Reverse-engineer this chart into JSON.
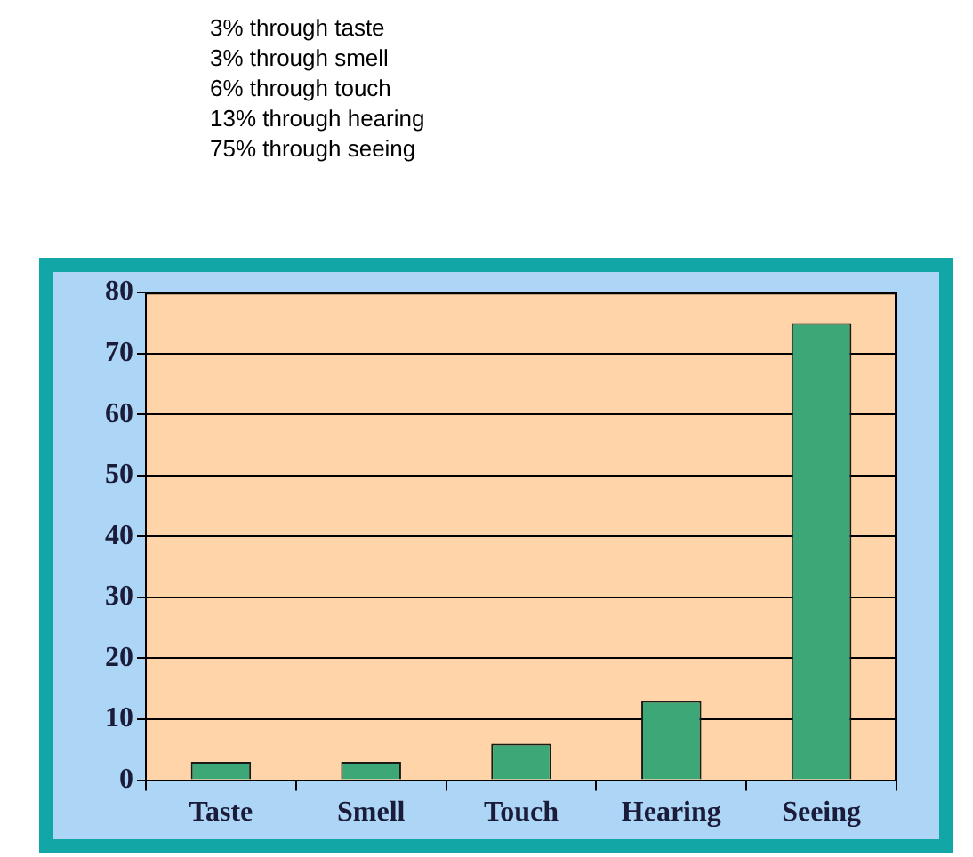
{
  "chart_data": {
    "type": "bar",
    "annotations": [
      "3% through taste",
      "3% through smell",
      "6% through touch",
      "13% through hearing",
      "75% through seeing"
    ],
    "categories": [
      "Taste",
      "Smell",
      "Touch",
      "Hearing",
      "Seeing"
    ],
    "values": [
      3,
      3,
      6,
      13,
      75
    ],
    "color": "#3ca777",
    "ylim": [
      0,
      80
    ],
    "yticks": [
      0,
      10,
      20,
      30,
      40,
      50,
      60,
      70,
      80
    ],
    "grid": "y"
  }
}
